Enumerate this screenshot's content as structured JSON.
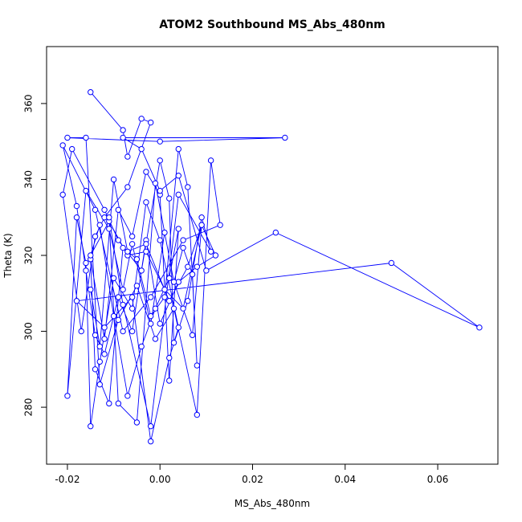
{
  "chart_data": {
    "type": "line",
    "title": "ATOM2 Southbound MS_Abs_480nm",
    "xlabel": "MS_Abs_480nm",
    "ylabel": "Theta (K)",
    "xlim": [
      -0.0245,
      0.073
    ],
    "ylim": [
      265,
      375
    ],
    "x_ticks": [
      -0.02,
      0.0,
      0.02,
      0.04,
      0.06
    ],
    "x_tick_labels": [
      "-0.02",
      "0.00",
      "0.02",
      "0.04",
      "0.06"
    ],
    "y_ticks": [
      280,
      300,
      320,
      340,
      360
    ],
    "y_tick_labels": [
      "280",
      "300",
      "320",
      "340",
      "360"
    ],
    "grid": false,
    "legend": "none",
    "series_color": "#0000ff",
    "markers": "open-circle",
    "x": [
      -0.015,
      -0.008,
      -0.007,
      -0.004,
      -0.002,
      -0.007,
      -0.012,
      -0.014,
      -0.017,
      -0.021,
      -0.019,
      -0.012,
      -0.009,
      -0.004,
      0.0,
      0.002,
      0.003,
      0.004,
      0.0,
      -0.003,
      -0.006,
      -0.01,
      -0.013,
      -0.015,
      -0.016,
      -0.018,
      -0.02,
      -0.016,
      -0.011,
      -0.008,
      -0.006,
      -0.002,
      0.001,
      0.003,
      0.005,
      0.007,
      0.008,
      0.006,
      0.004,
      0.001,
      -0.002,
      -0.005,
      -0.008,
      -0.011,
      -0.014,
      -0.015,
      -0.012,
      -0.009,
      -0.006,
      -0.003,
      0.0,
      0.002,
      0.004,
      0.002,
      -0.001,
      -0.004,
      -0.007,
      -0.01,
      -0.013,
      -0.015,
      -0.011,
      -0.007,
      -0.003,
      0.001,
      0.005,
      0.009,
      0.012,
      0.008,
      0.004,
      0.0,
      -0.003,
      -0.006,
      -0.009,
      -0.012,
      -0.014,
      -0.016,
      -0.018,
      -0.021,
      -0.014,
      -0.008,
      -0.002,
      0.005,
      0.013,
      0.011,
      0.008,
      0.003,
      -0.001,
      -0.005,
      -0.009,
      -0.013,
      -0.016,
      -0.02,
      0.0,
      0.027,
      -0.008,
      -0.004,
      0.0,
      0.004,
      0.01,
      0.025,
      0.069,
      0.05,
      -0.018,
      -0.012,
      -0.006,
      -0.002,
      0.002,
      0.006,
      0.009,
      0.011,
      0.004,
      -0.002,
      -0.008,
      -0.011,
      -0.009,
      -0.005,
      -0.001,
      0.003,
      0.007,
      0.009,
      0.006,
      0.002,
      -0.003,
      -0.007,
      -0.01,
      -0.013,
      -0.015
    ],
    "y": [
      363,
      353,
      346,
      356,
      355,
      338,
      330,
      325,
      300,
      336,
      348,
      332,
      324,
      316,
      345,
      335,
      297,
      301,
      324,
      334,
      306,
      314,
      292,
      275,
      318,
      330,
      283,
      337,
      327,
      311,
      323,
      302,
      326,
      313,
      322,
      315,
      291,
      338,
      348,
      309,
      304,
      319,
      322,
      281,
      290,
      319,
      298,
      332,
      325,
      342,
      336,
      287,
      327,
      314,
      306,
      296,
      283,
      304,
      328,
      320,
      329,
      320,
      321,
      311,
      306,
      328,
      320,
      317,
      313,
      302,
      324,
      300,
      309,
      294,
      299,
      316,
      333,
      349,
      332,
      300,
      309,
      324,
      328,
      345,
      278,
      306,
      298,
      312,
      303,
      286,
      351,
      351,
      350,
      351,
      351,
      348,
      337,
      341,
      316,
      326,
      301,
      318,
      308,
      301,
      309,
      271,
      293,
      308,
      330,
      321,
      336,
      275,
      307,
      330,
      281,
      276,
      339,
      313,
      299,
      328,
      317,
      308,
      323,
      321,
      340,
      296,
      311
    ]
  }
}
